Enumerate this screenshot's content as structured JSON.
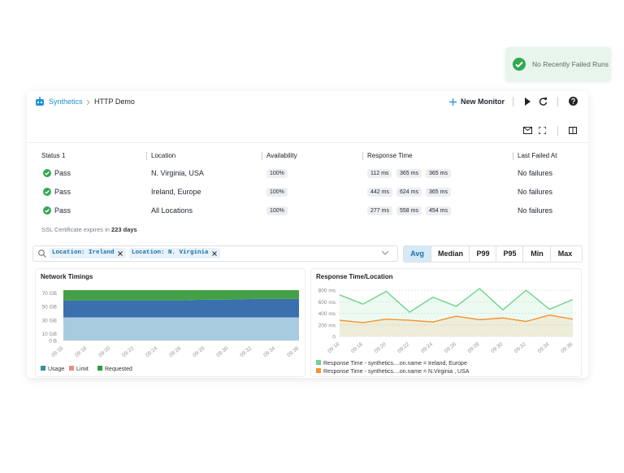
{
  "toast": {
    "text": "No Recently Failed Runs"
  },
  "header": {
    "product": "Synthetics",
    "page": "HTTP Demo",
    "new_monitor": "New Monitor"
  },
  "table": {
    "columns": [
      "Status",
      "Location",
      "Availability",
      "Response Time",
      "Last Failed At"
    ],
    "status_count": "1",
    "rows": [
      {
        "status": "Pass",
        "location": "N. Virginia, USA",
        "availability": "100%",
        "response_times": [
          "112 ms",
          "365 ms",
          "365 ms"
        ],
        "last_failed": "No failures"
      },
      {
        "status": "Pass",
        "location": "Ireland, Europe",
        "availability": "100%",
        "response_times": [
          "442 ms",
          "624 ms",
          "365 ms"
        ],
        "last_failed": "No failures"
      },
      {
        "status": "Pass",
        "location": "All Locations",
        "availability": "100%",
        "response_times": [
          "277 ms",
          "558 ms",
          "454 ms"
        ],
        "last_failed": "No failures"
      }
    ]
  },
  "ssl": {
    "text": "SSL Certificate expires in",
    "days": "223 days"
  },
  "filters": {
    "chips": [
      "Location: Ireland",
      "Location: N. Virginia"
    ]
  },
  "aggregations": {
    "options": [
      "Avg",
      "Median",
      "P99",
      "P95",
      "Min",
      "Max"
    ],
    "selected_index": 0
  },
  "chart_data": [
    {
      "type": "area",
      "stacked": true,
      "title": "Network Timings",
      "x": [
        "09:16",
        "09:18",
        "09:20",
        "09:22",
        "09:24",
        "09:26",
        "09:28",
        "09:30",
        "09:32",
        "09:34",
        "09:36"
      ],
      "series": [
        {
          "name": "Usage",
          "color": "#a9cbe0",
          "values": [
            34,
            34,
            34,
            34,
            34,
            34,
            34,
            34,
            34,
            34,
            34
          ]
        },
        {
          "name": "Limit",
          "color": "#3b6fae",
          "values": [
            25,
            25,
            25,
            25,
            25,
            25,
            26,
            26,
            27,
            27,
            27
          ]
        },
        {
          "name": "Requested",
          "color": "#43a047",
          "values": [
            15,
            15,
            15,
            15,
            15,
            15,
            14,
            14,
            13,
            13,
            13
          ]
        }
      ],
      "legend_colors": [
        "#3a8fa0",
        "#f08a7e",
        "#2e9e3a"
      ],
      "ylim": [
        0,
        80
      ],
      "yticks": [
        {
          "value": 70,
          "label": "70 GB"
        },
        {
          "value": 50,
          "label": "50 GB"
        },
        {
          "value": 30,
          "label": "30 GB"
        },
        {
          "value": 10,
          "label": "10 GB"
        },
        {
          "value": 0,
          "label": "0 B"
        }
      ],
      "grid": true
    },
    {
      "type": "line",
      "title": "Response Time/Location",
      "x": [
        "09:16",
        "09:18",
        "09:20",
        "09:22",
        "09:24",
        "09:26",
        "09:28",
        "09:30",
        "09:32",
        "09:34",
        "09:36"
      ],
      "series": [
        {
          "name": "Response Time - synthetics....on.name = Ireland, Europe",
          "color": "#6fd38c",
          "values": [
            720,
            560,
            780,
            420,
            680,
            520,
            830,
            460,
            800,
            470,
            640
          ]
        },
        {
          "name": "Response Time - synthetics....on.name = N.Virginia , USA",
          "color": "#f5922f",
          "values": [
            280,
            240,
            300,
            280,
            250,
            350,
            290,
            320,
            260,
            370,
            300
          ]
        }
      ],
      "ylim": [
        0,
        900
      ],
      "yticks": [
        {
          "value": 800,
          "label": "800 ms"
        },
        {
          "value": 600,
          "label": "600 ms"
        },
        {
          "value": 400,
          "label": "400 ms"
        },
        {
          "value": 200,
          "label": "200 ms"
        },
        {
          "value": 0,
          "label": "0"
        }
      ],
      "grid": true
    }
  ]
}
